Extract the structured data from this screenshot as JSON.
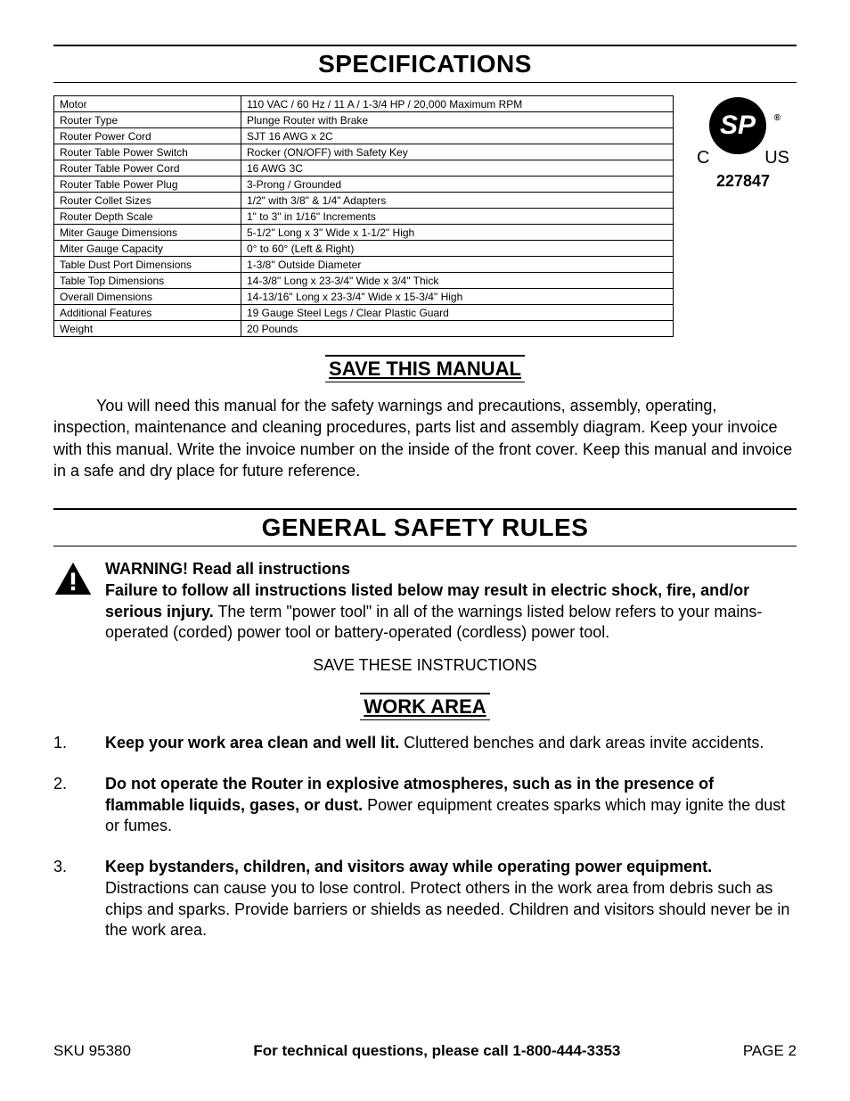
{
  "headings": {
    "specifications": "SPECIFICATIONS",
    "save_manual": "SAVE THIS MANUAL",
    "general_safety": "GENERAL SAFETY RULES",
    "save_instructions": "SAVE THESE INSTRUCTIONS",
    "work_area": "WORK AREA"
  },
  "cert": {
    "mark": "SP",
    "reg": "®",
    "c": "C",
    "us": "US",
    "number": "227847"
  },
  "spec_table": [
    {
      "label": "Motor",
      "value": "110 VAC / 60 Hz / 11 A / 1-3/4 HP / 20,000 Maximum RPM"
    },
    {
      "label": "Router Type",
      "value": "Plunge Router with Brake"
    },
    {
      "label": "Router Power Cord",
      "value": "SJT 16 AWG x 2C"
    },
    {
      "label": "Router Table Power Switch",
      "value": "Rocker (ON/OFF) with Safety Key"
    },
    {
      "label": "Router Table Power Cord",
      "value": "16 AWG 3C"
    },
    {
      "label": "Router Table Power Plug",
      "value": "3-Prong / Grounded"
    },
    {
      "label": "Router Collet Sizes",
      "value": "1/2\" with 3/8\" & 1/4\" Adapters"
    },
    {
      "label": "Router Depth Scale",
      "value": "1\" to 3\" in 1/16\" Increments"
    },
    {
      "label": "Miter Gauge Dimensions",
      "value": "5-1/2\" Long x 3\" Wide x 1-1/2\" High"
    },
    {
      "label": "Miter Gauge Capacity",
      "value": "0° to 60° (Left & Right)"
    },
    {
      "label": "Table Dust Port Dimensions",
      "value": "1-3/8\" Outside Diameter"
    },
    {
      "label": "Table Top Dimensions",
      "value": "14-3/8\" Long x 23-3/4\" Wide x 3/4\" Thick"
    },
    {
      "label": "Overall Dimensions",
      "value": "14-13/16\" Long x 23-3/4\" Wide x 15-3/4\" High"
    },
    {
      "label": "Additional Features",
      "value": "19 Gauge Steel Legs / Clear Plastic Guard"
    },
    {
      "label": "Weight",
      "value": "20 Pounds"
    }
  ],
  "save_manual_para": "You will need this manual for the safety warnings and precautions, assembly, operating, inspection, maintenance and cleaning procedures, parts list and assembly diagram.  Keep your invoice with this manual.  Write the invoice number on the inside of the front cover.  Keep this manual and invoice in a safe and dry place for future reference.",
  "warning": {
    "title": "WARNING!  Read all instructions",
    "bold": "Failure to follow all instructions listed below may result in electric shock, fire, and/or serious injury.",
    "rest": "  The term \"power tool\" in all of the warnings listed below refers to your mains-operated (corded) power tool or battery-operated (cordless) power tool."
  },
  "rules": [
    {
      "n": "1.",
      "bold": "Keep your work area clean and well lit.",
      "rest": "  Cluttered benches and dark areas invite accidents."
    },
    {
      "n": "2.",
      "bold": "Do not operate the Router in explosive atmospheres, such as in the presence of flammable liquids, gases, or dust.",
      "rest": "  Power equipment creates sparks which may ignite the dust or fumes."
    },
    {
      "n": "3.",
      "bold": "Keep bystanders, children, and visitors away while operating power equipment.",
      "rest": "  Distractions can cause you to lose control.  Protect others in the work area from debris such as chips and sparks.  Provide barriers or shields as needed.  Children and visitors should never be in the work area."
    }
  ],
  "footer": {
    "left": "SKU 95380",
    "mid": "For technical questions, please call 1-800-444-3353",
    "right": "PAGE 2"
  }
}
